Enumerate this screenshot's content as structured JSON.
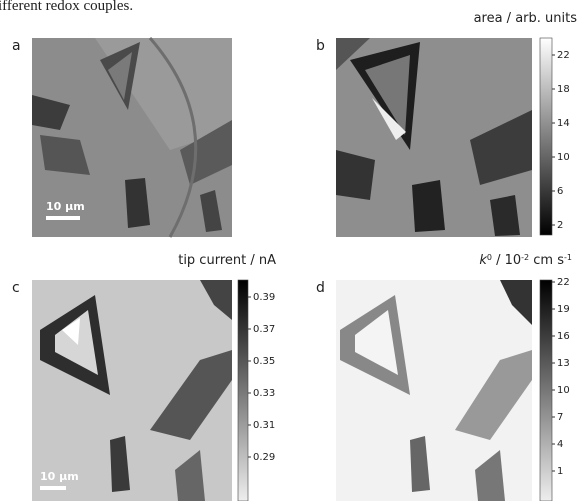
{
  "caption_fragment": "ifferent redox couples.",
  "panels": [
    {
      "label": "a",
      "scale_bar": "10 µm"
    },
    {
      "label": "b",
      "title": "area / arb. units",
      "colorbar_ticks": [
        22,
        18,
        14,
        10,
        6,
        2
      ]
    },
    {
      "label": "c",
      "title": "tip current / nA",
      "colorbar_ticks": [
        0.39,
        0.37,
        0.35,
        0.33,
        0.31,
        0.29
      ],
      "scale_bar": "10 µm"
    },
    {
      "label": "d",
      "title_parts": [
        "k",
        "0",
        " / 10",
        "-2",
        " cm s",
        "-1"
      ],
      "colorbar_ticks": [
        22,
        19,
        16,
        13,
        10,
        7,
        4,
        1
      ]
    }
  ]
}
